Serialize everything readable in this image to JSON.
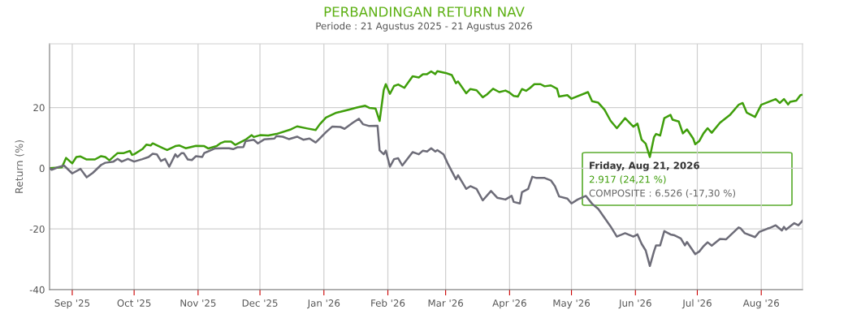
{
  "chart_data": {
    "type": "line",
    "title": "PERBANDINGAN RETURN NAV",
    "subtitle": "Periode : 21 Agustus 2025 - 21 Agustus 2026",
    "ylabel": "Return (%)",
    "xlim": [
      "2025-08-21",
      "2026-08-21"
    ],
    "xticks": [
      {
        "value": "2025-09-01",
        "label": "Sep '25"
      },
      {
        "value": "2025-10-01",
        "label": "Oct '25"
      },
      {
        "value": "2025-11-01",
        "label": "Nov '25"
      },
      {
        "value": "2025-12-01",
        "label": "Dec '25"
      },
      {
        "value": "2026-01-01",
        "label": "Jan '26"
      },
      {
        "value": "2026-02-01",
        "label": "Feb '26"
      },
      {
        "value": "2026-03-01",
        "label": "Mar '26"
      },
      {
        "value": "2026-04-01",
        "label": "Apr '26"
      },
      {
        "value": "2026-05-01",
        "label": "May '26"
      },
      {
        "value": "2026-06-01",
        "label": "Jun '26"
      },
      {
        "value": "2026-07-01",
        "label": "Jul '26"
      },
      {
        "value": "2026-08-01",
        "label": "Aug '26"
      }
    ],
    "ylim": [
      -40,
      41
    ],
    "yticks": [
      -40,
      -20,
      0,
      20
    ],
    "grid": true,
    "legend": false,
    "marker": "none",
    "line_style": "solid",
    "annotations": [
      "Friday, Aug 21, 2026",
      "2.917 (24,21 %)",
      "COMPOSITE : 6.526 (-17,30 %)"
    ],
    "series": [
      {
        "color": "#3f9e0b",
        "x": [
          "2025-08-21",
          "2025-08-27",
          "2025-08-29",
          "2025-09-01",
          "2025-09-03",
          "2025-09-05",
          "2025-09-08",
          "2025-09-12",
          "2025-09-15",
          "2025-09-17",
          "2025-09-19",
          "2025-09-23",
          "2025-09-26",
          "2025-09-29",
          "2025-09-30",
          "2025-10-01",
          "2025-10-05",
          "2025-10-07",
          "2025-10-09",
          "2025-10-10",
          "2025-10-15",
          "2025-10-17",
          "2025-10-21",
          "2025-10-23",
          "2025-10-26",
          "2025-10-31",
          "2025-11-04",
          "2025-11-06",
          "2025-11-10",
          "2025-11-12",
          "2025-11-14",
          "2025-11-17",
          "2025-11-19",
          "2025-11-24",
          "2025-11-27",
          "2025-11-28",
          "2025-12-01",
          "2025-12-05",
          "2025-12-09",
          "2025-12-16",
          "2025-12-19",
          "2025-12-24",
          "2025-12-28",
          "2025-12-30",
          "2026-01-02",
          "2026-01-07",
          "2026-01-09",
          "2026-01-13",
          "2026-01-17",
          "2026-01-21",
          "2026-01-23",
          "2026-01-26",
          "2026-01-28",
          "2026-01-30",
          "2026-01-31",
          "2026-02-02",
          "2026-02-04",
          "2026-02-06",
          "2026-02-09",
          "2026-02-13",
          "2026-02-16",
          "2026-02-18",
          "2026-02-20",
          "2026-02-22",
          "2026-02-24",
          "2026-02-25",
          "2026-03-01",
          "2026-03-04",
          "2026-03-06",
          "2026-03-07",
          "2026-03-11",
          "2026-03-13",
          "2026-03-16",
          "2026-03-19",
          "2026-03-21",
          "2026-03-24",
          "2026-03-27",
          "2026-03-30",
          "2026-04-01",
          "2026-04-03",
          "2026-04-05",
          "2026-04-07",
          "2026-04-09",
          "2026-04-11",
          "2026-04-13",
          "2026-04-16",
          "2026-04-18",
          "2026-04-21",
          "2026-04-24",
          "2026-04-25",
          "2026-04-29",
          "2026-05-01",
          "2026-05-09",
          "2026-05-11",
          "2026-05-14",
          "2026-05-17",
          "2026-05-20",
          "2026-05-23",
          "2026-05-27",
          "2026-05-31",
          "2026-06-02",
          "2026-06-04",
          "2026-06-06",
          "2026-06-08",
          "2026-06-10",
          "2026-06-11",
          "2026-06-13",
          "2026-06-15",
          "2026-06-18",
          "2026-06-19",
          "2026-06-22",
          "2026-06-24",
          "2026-06-26",
          "2026-06-29",
          "2026-06-30",
          "2026-07-02",
          "2026-07-04",
          "2026-07-06",
          "2026-07-08",
          "2026-07-12",
          "2026-07-17",
          "2026-07-21",
          "2026-07-23",
          "2026-07-25",
          "2026-07-29",
          "2026-08-01",
          "2026-08-04",
          "2026-08-08",
          "2026-08-10",
          "2026-08-12",
          "2026-08-14",
          "2026-08-15",
          "2026-08-18",
          "2026-08-20",
          "2026-08-21"
        ],
        "values": [
          0,
          0.3,
          3.4,
          1.6,
          3.7,
          3.9,
          2.9,
          2.9,
          4.0,
          3.7,
          2.6,
          5.0,
          5.0,
          5.7,
          4.4,
          4.6,
          6.3,
          7.8,
          7.5,
          8.2,
          6.6,
          6.0,
          7.3,
          7.5,
          6.6,
          7.4,
          7.3,
          6.5,
          7.3,
          8.3,
          8.8,
          8.8,
          7.7,
          9.4,
          10.9,
          10.3,
          10.9,
          10.8,
          11.3,
          12.8,
          13.8,
          13.1,
          12.6,
          14.5,
          16.7,
          18.3,
          18.6,
          19.3,
          20.0,
          20.6,
          19.9,
          19.7,
          15.6,
          25.8,
          27.7,
          24.5,
          27.1,
          27.6,
          26.5,
          30.3,
          29.9,
          31.0,
          31.0,
          31.9,
          31.0,
          32.0,
          31.4,
          30.7,
          28.0,
          28.6,
          24.7,
          26.1,
          25.7,
          23.4,
          24.3,
          26.2,
          25.1,
          25.6,
          24.9,
          23.8,
          23.6,
          26.1,
          25.5,
          26.5,
          27.7,
          27.7,
          27.0,
          27.3,
          26.2,
          23.6,
          24.1,
          22.9,
          25.1,
          22.1,
          21.6,
          19.3,
          15.6,
          13.2,
          16.5,
          13.7,
          14.7,
          9.4,
          8.1,
          3.7,
          10.2,
          11.3,
          10.8,
          16.5,
          17.6,
          16.0,
          15.4,
          11.5,
          12.8,
          9.8,
          7.9,
          9.0,
          11.5,
          13.2,
          11.7,
          15.0,
          17.7,
          20.9,
          21.5,
          18.3,
          16.9,
          20.9,
          21.7,
          22.8,
          21.5,
          22.8,
          21.0,
          21.9,
          22.3,
          24.1,
          24.2
        ]
      },
      {
        "color": "#6d6c78",
        "x": [
          "2025-08-21",
          "2025-08-22",
          "2025-08-25",
          "2025-08-28",
          "2025-09-01",
          "2025-09-05",
          "2025-09-08",
          "2025-09-11",
          "2025-09-15",
          "2025-09-17",
          "2025-09-21",
          "2025-09-23",
          "2025-09-25",
          "2025-09-28",
          "2025-10-01",
          "2025-10-05",
          "2025-10-08",
          "2025-10-10",
          "2025-10-12",
          "2025-10-14",
          "2025-10-16",
          "2025-10-18",
          "2025-10-21",
          "2025-10-22",
          "2025-10-24",
          "2025-10-25",
          "2025-10-27",
          "2025-10-29",
          "2025-10-31",
          "2025-11-03",
          "2025-11-04",
          "2025-11-09",
          "2025-11-13",
          "2025-11-16",
          "2025-11-18",
          "2025-11-20",
          "2025-11-23",
          "2025-11-24",
          "2025-11-28",
          "2025-11-30",
          "2025-12-03",
          "2025-12-08",
          "2025-12-09",
          "2025-12-12",
          "2025-12-15",
          "2025-12-19",
          "2025-12-22",
          "2025-12-25",
          "2025-12-28",
          "2025-12-30",
          "2026-01-02",
          "2026-01-05",
          "2026-01-09",
          "2026-01-11",
          "2026-01-15",
          "2026-01-18",
          "2026-01-20",
          "2026-01-23",
          "2026-01-27",
          "2026-01-28",
          "2026-01-30",
          "2026-01-31",
          "2026-02-02",
          "2026-02-04",
          "2026-02-06",
          "2026-02-08",
          "2026-02-13",
          "2026-02-16",
          "2026-02-18",
          "2026-02-20",
          "2026-02-22",
          "2026-02-24",
          "2026-02-25",
          "2026-02-28",
          "2026-03-02",
          "2026-03-06",
          "2026-03-07",
          "2026-03-11",
          "2026-03-13",
          "2026-03-16",
          "2026-03-19",
          "2026-03-23",
          "2026-03-26",
          "2026-03-30",
          "2026-04-02",
          "2026-04-03",
          "2026-04-06",
          "2026-04-07",
          "2026-04-10",
          "2026-04-12",
          "2026-04-14",
          "2026-04-18",
          "2026-04-21",
          "2026-04-23",
          "2026-04-25",
          "2026-04-29",
          "2026-05-01",
          "2026-05-04",
          "2026-05-08",
          "2026-05-11",
          "2026-05-14",
          "2026-05-20",
          "2026-05-23",
          "2026-05-27",
          "2026-05-31",
          "2026-06-02",
          "2026-06-04",
          "2026-06-06",
          "2026-06-08",
          "2026-06-10",
          "2026-06-11",
          "2026-06-13",
          "2026-06-15",
          "2026-06-18",
          "2026-06-20",
          "2026-06-23",
          "2026-06-25",
          "2026-06-26",
          "2026-06-30",
          "2026-07-02",
          "2026-07-04",
          "2026-07-06",
          "2026-07-08",
          "2026-07-12",
          "2026-07-15",
          "2026-07-21",
          "2026-07-22",
          "2026-07-24",
          "2026-07-29",
          "2026-07-31",
          "2026-08-04",
          "2026-08-05",
          "2026-08-08",
          "2026-08-11",
          "2026-08-12",
          "2026-08-13",
          "2026-08-17",
          "2026-08-19",
          "2026-08-21"
        ],
        "values": [
          0,
          -0.5,
          0.3,
          0.9,
          -1.7,
          -0.2,
          -3.0,
          -1.5,
          1.1,
          1.8,
          2.2,
          3.1,
          2.2,
          3.1,
          2.2,
          3.0,
          3.7,
          4.8,
          4.6,
          2.4,
          3.1,
          0.5,
          4.6,
          3.7,
          5.0,
          5.0,
          2.9,
          2.7,
          4.0,
          3.7,
          5.0,
          6.5,
          6.6,
          6.6,
          6.3,
          6.9,
          7.0,
          8.9,
          9.4,
          8.2,
          9.5,
          9.8,
          10.6,
          10.4,
          9.6,
          10.4,
          9.4,
          9.8,
          8.5,
          9.8,
          11.9,
          13.7,
          13.6,
          13.0,
          15.0,
          16.3,
          14.5,
          13.9,
          14.0,
          5.9,
          4.6,
          5.8,
          0.5,
          3.0,
          3.3,
          0.9,
          5.3,
          4.6,
          5.8,
          5.5,
          6.6,
          5.5,
          6.0,
          4.6,
          1.6,
          -3.6,
          -2.3,
          -6.8,
          -5.9,
          -6.8,
          -10.6,
          -7.5,
          -9.7,
          -10.3,
          -9.1,
          -11.1,
          -11.6,
          -7.9,
          -6.8,
          -2.8,
          -3.2,
          -3.2,
          -4.0,
          -5.9,
          -9.3,
          -10.0,
          -11.6,
          -10.3,
          -9.1,
          -11.7,
          -13.4,
          -19.2,
          -22.5,
          -21.4,
          -22.5,
          -21.8,
          -24.9,
          -27.1,
          -32.2,
          -27.4,
          -25.4,
          -25.4,
          -20.7,
          -21.8,
          -22.1,
          -23.1,
          -25.4,
          -24.3,
          -28.3,
          -27.4,
          -25.7,
          -24.4,
          -25.5,
          -23.3,
          -23.4,
          -19.5,
          -19.8,
          -21.4,
          -22.7,
          -21.0,
          -19.9,
          -19.7,
          -18.8,
          -20.5,
          -19.3,
          -20.2,
          -18.1,
          -18.8,
          -17.3
        ]
      }
    ]
  }
}
